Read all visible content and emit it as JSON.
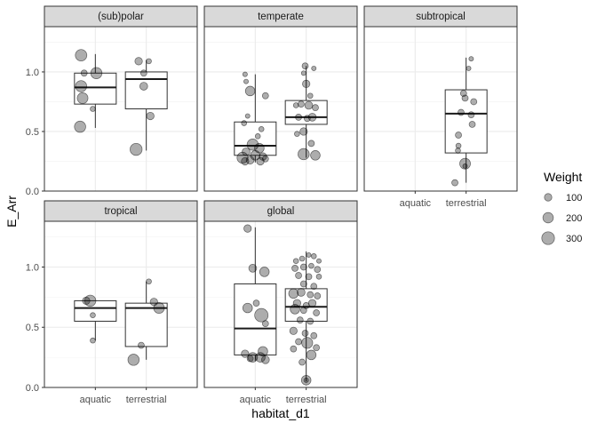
{
  "chart_data": {
    "type": "boxplot-jitter-facet",
    "xlabel": "habitat_d1",
    "ylabel": "E_Arr",
    "categories": [
      "aquatic",
      "terrestrial"
    ],
    "ylim": [
      0,
      1.38
    ],
    "yticks": [
      0.0,
      0.5,
      1.0
    ],
    "ytick_labels": [
      "0.0",
      "0.5",
      "1.0"
    ],
    "grid": true,
    "legend": {
      "title": "Weight",
      "placement": "right",
      "entries": [
        {
          "label": "100",
          "value": 100
        },
        {
          "label": "200",
          "value": 200
        },
        {
          "label": "300",
          "value": 300
        }
      ]
    },
    "panels": [
      {
        "title": "(sub)polar",
        "boxes": [
          {
            "category": "aquatic",
            "whisker_low": 0.53,
            "q1": 0.73,
            "median": 0.87,
            "q3": 0.99,
            "whisker_high": 1.15
          },
          {
            "category": "terrestrial",
            "whisker_low": 0.34,
            "q1": 0.69,
            "median": 0.94,
            "q3": 1.0,
            "whisker_high": 1.1
          }
        ],
        "points": [
          {
            "category": "aquatic",
            "jitter": -0.28,
            "y": 1.14,
            "w": 220
          },
          {
            "category": "aquatic",
            "jitter": -0.22,
            "y": 0.99,
            "w": 60
          },
          {
            "category": "aquatic",
            "jitter": 0.02,
            "y": 0.99,
            "w": 210
          },
          {
            "category": "aquatic",
            "jitter": -0.28,
            "y": 0.88,
            "w": 210
          },
          {
            "category": "aquatic",
            "jitter": -0.25,
            "y": 0.78,
            "w": 190
          },
          {
            "category": "aquatic",
            "jitter": -0.05,
            "y": 0.69,
            "w": 40
          },
          {
            "category": "aquatic",
            "jitter": -0.3,
            "y": 0.54,
            "w": 210
          },
          {
            "category": "terrestrial",
            "jitter": -0.15,
            "y": 1.09,
            "w": 90
          },
          {
            "category": "terrestrial",
            "jitter": -0.05,
            "y": 0.99,
            "w": 60
          },
          {
            "category": "terrestrial",
            "jitter": 0.05,
            "y": 1.09,
            "w": 40
          },
          {
            "category": "terrestrial",
            "jitter": -0.05,
            "y": 0.88,
            "w": 100
          },
          {
            "category": "terrestrial",
            "jitter": 0.08,
            "y": 0.63,
            "w": 90
          },
          {
            "category": "terrestrial",
            "jitter": -0.2,
            "y": 0.35,
            "w": 240
          }
        ]
      },
      {
        "title": "temperate",
        "boxes": [
          {
            "category": "aquatic",
            "whisker_low": 0.24,
            "q1": 0.3,
            "median": 0.38,
            "q3": 0.58,
            "whisker_high": 0.98
          },
          {
            "category": "terrestrial",
            "whisker_low": 0.28,
            "q1": 0.56,
            "median": 0.62,
            "q3": 0.76,
            "whisker_high": 1.05
          }
        ],
        "points": [
          {
            "category": "aquatic",
            "jitter": -0.2,
            "y": 0.98,
            "w": 30
          },
          {
            "category": "aquatic",
            "jitter": -0.18,
            "y": 0.92,
            "w": 30
          },
          {
            "category": "aquatic",
            "jitter": -0.1,
            "y": 0.84,
            "w": 150
          },
          {
            "category": "aquatic",
            "jitter": 0.2,
            "y": 0.8,
            "w": 60
          },
          {
            "category": "aquatic",
            "jitter": -0.15,
            "y": 0.63,
            "w": 30
          },
          {
            "category": "aquatic",
            "jitter": -0.22,
            "y": 0.57,
            "w": 40
          },
          {
            "category": "aquatic",
            "jitter": 0.12,
            "y": 0.52,
            "w": 40
          },
          {
            "category": "aquatic",
            "jitter": 0.05,
            "y": 0.46,
            "w": 40
          },
          {
            "category": "aquatic",
            "jitter": -0.05,
            "y": 0.39,
            "w": 210
          },
          {
            "category": "aquatic",
            "jitter": 0.08,
            "y": 0.36,
            "w": 150
          },
          {
            "category": "aquatic",
            "jitter": -0.18,
            "y": 0.33,
            "w": 100
          },
          {
            "category": "aquatic",
            "jitter": -0.25,
            "y": 0.28,
            "w": 200
          },
          {
            "category": "aquatic",
            "jitter": 0.0,
            "y": 0.3,
            "w": 150
          },
          {
            "category": "aquatic",
            "jitter": 0.15,
            "y": 0.29,
            "w": 90
          },
          {
            "category": "aquatic",
            "jitter": -0.2,
            "y": 0.25,
            "w": 90
          },
          {
            "category": "aquatic",
            "jitter": -0.1,
            "y": 0.26,
            "w": 100
          },
          {
            "category": "aquatic",
            "jitter": 0.1,
            "y": 0.25,
            "w": 90
          },
          {
            "category": "aquatic",
            "jitter": 0.2,
            "y": 0.27,
            "w": 60
          },
          {
            "category": "terrestrial",
            "jitter": -0.02,
            "y": 1.05,
            "w": 60
          },
          {
            "category": "terrestrial",
            "jitter": 0.15,
            "y": 1.03,
            "w": 30
          },
          {
            "category": "terrestrial",
            "jitter": -0.05,
            "y": 0.99,
            "w": 30
          },
          {
            "category": "terrestrial",
            "jitter": 0.0,
            "y": 0.9,
            "w": 90
          },
          {
            "category": "terrestrial",
            "jitter": 0.08,
            "y": 0.8,
            "w": 40
          },
          {
            "category": "terrestrial",
            "jitter": -0.2,
            "y": 0.72,
            "w": 40
          },
          {
            "category": "terrestrial",
            "jitter": -0.1,
            "y": 0.73,
            "w": 60
          },
          {
            "category": "terrestrial",
            "jitter": 0.05,
            "y": 0.72,
            "w": 100
          },
          {
            "category": "terrestrial",
            "jitter": 0.18,
            "y": 0.7,
            "w": 60
          },
          {
            "category": "terrestrial",
            "jitter": -0.15,
            "y": 0.62,
            "w": 60
          },
          {
            "category": "terrestrial",
            "jitter": 0.02,
            "y": 0.61,
            "w": 60
          },
          {
            "category": "terrestrial",
            "jitter": 0.12,
            "y": 0.62,
            "w": 100
          },
          {
            "category": "terrestrial",
            "jitter": -0.05,
            "y": 0.5,
            "w": 90
          },
          {
            "category": "terrestrial",
            "jitter": -0.18,
            "y": 0.48,
            "w": 40
          },
          {
            "category": "terrestrial",
            "jitter": 0.1,
            "y": 0.4,
            "w": 60
          },
          {
            "category": "terrestrial",
            "jitter": -0.05,
            "y": 0.31,
            "w": 210
          },
          {
            "category": "terrestrial",
            "jitter": 0.18,
            "y": 0.3,
            "w": 150
          }
        ]
      },
      {
        "title": "subtropical",
        "boxes": [
          {
            "category": "terrestrial",
            "whisker_low": 0.07,
            "q1": 0.32,
            "median": 0.65,
            "q3": 0.85,
            "whisker_high": 1.12
          }
        ],
        "points": [
          {
            "category": "terrestrial",
            "jitter": 0.1,
            "y": 1.11,
            "w": 30
          },
          {
            "category": "terrestrial",
            "jitter": 0.05,
            "y": 1.03,
            "w": 30
          },
          {
            "category": "terrestrial",
            "jitter": -0.05,
            "y": 0.82,
            "w": 60
          },
          {
            "category": "terrestrial",
            "jitter": -0.02,
            "y": 0.78,
            "w": 60
          },
          {
            "category": "terrestrial",
            "jitter": 0.15,
            "y": 0.75,
            "w": 60
          },
          {
            "category": "terrestrial",
            "jitter": -0.1,
            "y": 0.66,
            "w": 60
          },
          {
            "category": "terrestrial",
            "jitter": 0.1,
            "y": 0.64,
            "w": 60
          },
          {
            "category": "terrestrial",
            "jitter": 0.12,
            "y": 0.56,
            "w": 60
          },
          {
            "category": "terrestrial",
            "jitter": -0.15,
            "y": 0.47,
            "w": 60
          },
          {
            "category": "terrestrial",
            "jitter": -0.15,
            "y": 0.38,
            "w": 40
          },
          {
            "category": "terrestrial",
            "jitter": -0.16,
            "y": 0.34,
            "w": 40
          },
          {
            "category": "terrestrial",
            "jitter": -0.02,
            "y": 0.23,
            "w": 190
          },
          {
            "category": "terrestrial",
            "jitter": -0.02,
            "y": 0.21,
            "w": 30
          },
          {
            "category": "terrestrial",
            "jitter": -0.22,
            "y": 0.07,
            "w": 60
          }
        ]
      },
      {
        "title": "tropical",
        "boxes": [
          {
            "category": "aquatic",
            "whisker_low": 0.39,
            "q1": 0.55,
            "median": 0.66,
            "q3": 0.72,
            "whisker_high": 0.72
          },
          {
            "category": "terrestrial",
            "whisker_low": 0.23,
            "q1": 0.34,
            "median": 0.66,
            "q3": 0.7,
            "whisker_high": 0.88
          }
        ],
        "points": [
          {
            "category": "aquatic",
            "jitter": -0.18,
            "y": 0.72,
            "w": 90
          },
          {
            "category": "aquatic",
            "jitter": -0.1,
            "y": 0.72,
            "w": 210
          },
          {
            "category": "aquatic",
            "jitter": -0.05,
            "y": 0.6,
            "w": 40
          },
          {
            "category": "aquatic",
            "jitter": -0.05,
            "y": 0.39,
            "w": 40
          },
          {
            "category": "terrestrial",
            "jitter": 0.05,
            "y": 0.88,
            "w": 40
          },
          {
            "category": "terrestrial",
            "jitter": 0.15,
            "y": 0.71,
            "w": 90
          },
          {
            "category": "terrestrial",
            "jitter": 0.25,
            "y": 0.66,
            "w": 190
          },
          {
            "category": "terrestrial",
            "jitter": -0.1,
            "y": 0.35,
            "w": 60
          },
          {
            "category": "terrestrial",
            "jitter": -0.25,
            "y": 0.23,
            "w": 210
          }
        ]
      },
      {
        "title": "global",
        "boxes": [
          {
            "category": "aquatic",
            "whisker_low": 0.22,
            "q1": 0.27,
            "median": 0.49,
            "q3": 0.86,
            "whisker_high": 1.33
          },
          {
            "category": "terrestrial",
            "whisker_low": 0.05,
            "q1": 0.55,
            "median": 0.67,
            "q3": 0.82,
            "whisker_high": 1.13
          }
        ],
        "points": [
          {
            "category": "aquatic",
            "jitter": -0.15,
            "y": 1.32,
            "w": 90
          },
          {
            "category": "aquatic",
            "jitter": -0.05,
            "y": 0.99,
            "w": 100
          },
          {
            "category": "aquatic",
            "jitter": 0.18,
            "y": 0.96,
            "w": 150
          },
          {
            "category": "aquatic",
            "jitter": 0.02,
            "y": 0.7,
            "w": 60
          },
          {
            "category": "aquatic",
            "jitter": -0.15,
            "y": 0.66,
            "w": 150
          },
          {
            "category": "aquatic",
            "jitter": 0.12,
            "y": 0.6,
            "w": 300
          },
          {
            "category": "aquatic",
            "jitter": 0.2,
            "y": 0.53,
            "w": 60
          },
          {
            "category": "aquatic",
            "jitter": 0.15,
            "y": 0.3,
            "w": 150
          },
          {
            "category": "aquatic",
            "jitter": -0.2,
            "y": 0.28,
            "w": 90
          },
          {
            "category": "aquatic",
            "jitter": -0.05,
            "y": 0.25,
            "w": 150
          },
          {
            "category": "aquatic",
            "jitter": 0.1,
            "y": 0.25,
            "w": 150
          },
          {
            "category": "aquatic",
            "jitter": 0.2,
            "y": 0.23,
            "w": 100
          },
          {
            "category": "aquatic",
            "jitter": -0.1,
            "y": 0.24,
            "w": 60
          },
          {
            "category": "terrestrial",
            "jitter": -0.2,
            "y": 1.05,
            "w": 40
          },
          {
            "category": "terrestrial",
            "jitter": -0.08,
            "y": 1.07,
            "w": 40
          },
          {
            "category": "terrestrial",
            "jitter": 0.05,
            "y": 1.1,
            "w": 30
          },
          {
            "category": "terrestrial",
            "jitter": 0.15,
            "y": 1.09,
            "w": 40
          },
          {
            "category": "terrestrial",
            "jitter": 0.25,
            "y": 1.05,
            "w": 30
          },
          {
            "category": "terrestrial",
            "jitter": -0.22,
            "y": 0.99,
            "w": 60
          },
          {
            "category": "terrestrial",
            "jitter": -0.05,
            "y": 1.0,
            "w": 60
          },
          {
            "category": "terrestrial",
            "jitter": 0.1,
            "y": 1.01,
            "w": 40
          },
          {
            "category": "terrestrial",
            "jitter": 0.22,
            "y": 0.98,
            "w": 60
          },
          {
            "category": "terrestrial",
            "jitter": -0.15,
            "y": 0.93,
            "w": 60
          },
          {
            "category": "terrestrial",
            "jitter": 0.05,
            "y": 0.92,
            "w": 60
          },
          {
            "category": "terrestrial",
            "jitter": 0.25,
            "y": 0.92,
            "w": 40
          },
          {
            "category": "terrestrial",
            "jitter": -0.05,
            "y": 0.86,
            "w": 60
          },
          {
            "category": "terrestrial",
            "jitter": 0.15,
            "y": 0.84,
            "w": 60
          },
          {
            "category": "terrestrial",
            "jitter": -0.25,
            "y": 0.78,
            "w": 150
          },
          {
            "category": "terrestrial",
            "jitter": -0.1,
            "y": 0.79,
            "w": 100
          },
          {
            "category": "terrestrial",
            "jitter": 0.08,
            "y": 0.77,
            "w": 60
          },
          {
            "category": "terrestrial",
            "jitter": 0.22,
            "y": 0.76,
            "w": 60
          },
          {
            "category": "terrestrial",
            "jitter": -0.18,
            "y": 0.7,
            "w": 90
          },
          {
            "category": "terrestrial",
            "jitter": 0.0,
            "y": 0.68,
            "w": 60
          },
          {
            "category": "terrestrial",
            "jitter": 0.12,
            "y": 0.7,
            "w": 90
          },
          {
            "category": "terrestrial",
            "jitter": -0.22,
            "y": 0.65,
            "w": 150
          },
          {
            "category": "terrestrial",
            "jitter": -0.05,
            "y": 0.64,
            "w": 60
          },
          {
            "category": "terrestrial",
            "jitter": 0.2,
            "y": 0.62,
            "w": 60
          },
          {
            "category": "terrestrial",
            "jitter": -0.12,
            "y": 0.56,
            "w": 60
          },
          {
            "category": "terrestrial",
            "jitter": 0.08,
            "y": 0.55,
            "w": 60
          },
          {
            "category": "terrestrial",
            "jitter": -0.25,
            "y": 0.47,
            "w": 90
          },
          {
            "category": "terrestrial",
            "jitter": -0.02,
            "y": 0.45,
            "w": 60
          },
          {
            "category": "terrestrial",
            "jitter": 0.15,
            "y": 0.43,
            "w": 60
          },
          {
            "category": "terrestrial",
            "jitter": -0.15,
            "y": 0.38,
            "w": 60
          },
          {
            "category": "terrestrial",
            "jitter": 0.02,
            "y": 0.37,
            "w": 200
          },
          {
            "category": "terrestrial",
            "jitter": 0.2,
            "y": 0.33,
            "w": 60
          },
          {
            "category": "terrestrial",
            "jitter": -0.25,
            "y": 0.32,
            "w": 60
          },
          {
            "category": "terrestrial",
            "jitter": 0.1,
            "y": 0.27,
            "w": 150
          },
          {
            "category": "terrestrial",
            "jitter": -0.08,
            "y": 0.21,
            "w": 60
          },
          {
            "category": "terrestrial",
            "jitter": 0.0,
            "y": 0.06,
            "w": 150
          },
          {
            "category": "terrestrial",
            "jitter": 0.0,
            "y": 0.06,
            "w": 30
          }
        ]
      }
    ]
  }
}
